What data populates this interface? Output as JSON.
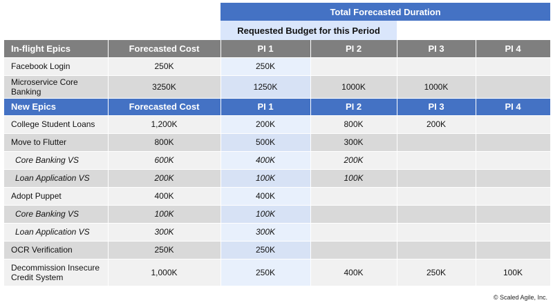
{
  "header": {
    "total_duration": "Total Forecasted Duration",
    "requested_budget": "Requested Budget for this Period"
  },
  "inflight": {
    "header": [
      "In-flight Epics",
      "Forecasted Cost",
      "PI 1",
      "PI 2",
      "PI 3",
      "PI 4"
    ],
    "rows": [
      {
        "name": "Facebook Login",
        "cost": "250K",
        "pi1": "250K",
        "pi2": "",
        "pi3": "",
        "pi4": ""
      },
      {
        "name": "Microservice Core Banking",
        "cost": "3250K",
        "pi1": "1250K",
        "pi2": "1000K",
        "pi3": "1000K",
        "pi4": ""
      }
    ]
  },
  "new": {
    "header": [
      "New Epics",
      "Forecasted Cost",
      "PI 1",
      "PI 2",
      "PI 3",
      "PI 4"
    ],
    "rows": [
      {
        "name": "College Student Loans",
        "cost": "1,200K",
        "pi1": "200K",
        "pi2": "800K",
        "pi3": "200K",
        "pi4": ""
      },
      {
        "name": "Move to Flutter",
        "cost": "800K",
        "pi1": "500K",
        "pi2": "300K",
        "pi3": "",
        "pi4": ""
      },
      {
        "name": "Core Banking VS",
        "cost": "600K",
        "pi1": "400K",
        "pi2": "200K",
        "pi3": "",
        "pi4": ""
      },
      {
        "name": "Loan Application VS",
        "cost": "200K",
        "pi1": "100K",
        "pi2": "100K",
        "pi3": "",
        "pi4": ""
      },
      {
        "name": "Adopt Puppet",
        "cost": "400K",
        "pi1": "400K",
        "pi2": "",
        "pi3": "",
        "pi4": ""
      },
      {
        "name": "Core Banking VS",
        "cost": "100K",
        "pi1": "100K",
        "pi2": "",
        "pi3": "",
        "pi4": ""
      },
      {
        "name": "Loan Application VS",
        "cost": "300K",
        "pi1": "300K",
        "pi2": "",
        "pi3": "",
        "pi4": ""
      },
      {
        "name": "OCR Verification",
        "cost": "250K",
        "pi1": "250K",
        "pi2": "",
        "pi3": "",
        "pi4": ""
      },
      {
        "name": "Decommission Insecure Credit System",
        "cost": "1,000K",
        "pi1": "250K",
        "pi2": "400K",
        "pi3": "250K",
        "pi4": "100K"
      }
    ]
  },
  "footer": {
    "copyright": "© Scaled Agile, Inc."
  },
  "colors": {
    "accent_blue": "#4472c4",
    "header_gray": "#7f7f7f",
    "requested_highlight": "#dae6fb"
  }
}
